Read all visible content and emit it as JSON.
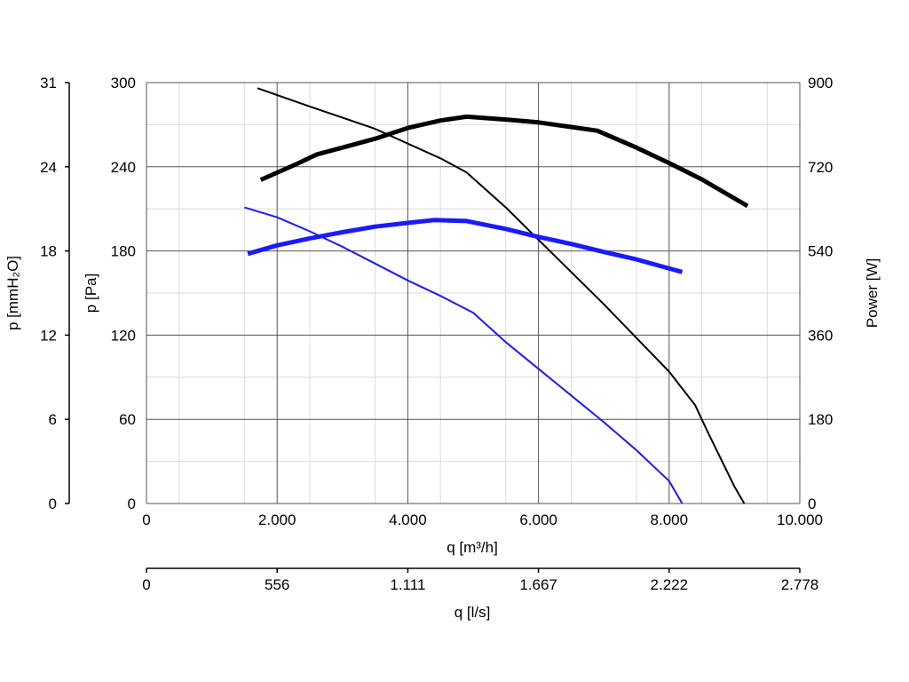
{
  "chart_data": {
    "type": "line",
    "grid": true,
    "legend": "none",
    "x_axis": {
      "label": "q [m³/h]",
      "range": [
        0,
        10000
      ],
      "ticks": [
        0,
        2000,
        4000,
        6000,
        8000,
        10000
      ],
      "tick_labels": [
        "0",
        "2.000",
        "4.000",
        "6.000",
        "8.000",
        "10.000"
      ]
    },
    "x_axis_secondary": {
      "label": "q [l/s]",
      "range": [
        0,
        2778
      ],
      "ticks": [
        0,
        556,
        1111,
        1667,
        2222,
        2778
      ],
      "tick_labels": [
        "0",
        "556",
        "1.111",
        "1.667",
        "2.222",
        "2.778"
      ]
    },
    "y_axis": {
      "label": "p [Pa]",
      "range": [
        0,
        300
      ],
      "ticks": [
        0,
        60,
        120,
        180,
        240,
        300
      ],
      "tick_labels": [
        "0",
        "60",
        "120",
        "180",
        "240",
        "300"
      ]
    },
    "y_axis_outer": {
      "label": "p [mmH₂O]",
      "range": [
        0,
        31
      ],
      "ticks": [
        0,
        6,
        12,
        18,
        24,
        31
      ],
      "tick_labels": [
        "0",
        "6",
        "12",
        "18",
        "24",
        "31"
      ]
    },
    "y_axis_right": {
      "label": "Power [W]",
      "range": [
        0,
        900
      ],
      "ticks": [
        0,
        180,
        360,
        540,
        720,
        900
      ],
      "tick_labels": [
        "0",
        "180",
        "360",
        "540",
        "720",
        "900"
      ]
    },
    "series": [
      {
        "axis": "pressure",
        "color": "#000000",
        "width": 2,
        "points": [
          [
            1700,
            296
          ],
          [
            2500,
            283
          ],
          [
            3500,
            267
          ],
          [
            4500,
            246
          ],
          [
            4900,
            236
          ],
          [
            5500,
            211
          ],
          [
            6000,
            188
          ],
          [
            7000,
            142
          ],
          [
            7500,
            118
          ],
          [
            8000,
            94
          ],
          [
            8400,
            70
          ],
          [
            8600,
            50
          ],
          [
            9000,
            12
          ],
          [
            9150,
            0
          ]
        ]
      },
      {
        "axis": "power",
        "color": "#000000",
        "width": 5,
        "points": [
          [
            1750,
            692
          ],
          [
            2300,
            726
          ],
          [
            2600,
            746
          ],
          [
            3000,
            761
          ],
          [
            3500,
            780
          ],
          [
            4000,
            803
          ],
          [
            4500,
            819
          ],
          [
            4900,
            827
          ],
          [
            5500,
            821
          ],
          [
            6000,
            815
          ],
          [
            6900,
            797
          ],
          [
            7500,
            761
          ],
          [
            8000,
            728
          ],
          [
            8500,
            693
          ],
          [
            9200,
            636
          ]
        ]
      },
      {
        "axis": "pressure",
        "color": "#1a1aff",
        "width": 2,
        "points": [
          [
            1500,
            211
          ],
          [
            2000,
            204
          ],
          [
            2500,
            194
          ],
          [
            3000,
            183
          ],
          [
            3500,
            171
          ],
          [
            4000,
            159
          ],
          [
            4500,
            148
          ],
          [
            5000,
            136
          ],
          [
            5500,
            115
          ],
          [
            6000,
            96
          ],
          [
            6500,
            77
          ],
          [
            7000,
            58
          ],
          [
            7500,
            38
          ],
          [
            8000,
            16
          ],
          [
            8200,
            0
          ]
        ]
      },
      {
        "axis": "power",
        "color": "#1a1aff",
        "width": 5,
        "points": [
          [
            1550,
            534
          ],
          [
            2000,
            552
          ],
          [
            2500,
            567
          ],
          [
            3000,
            580
          ],
          [
            3500,
            592
          ],
          [
            4000,
            600
          ],
          [
            4400,
            606
          ],
          [
            4900,
            604
          ],
          [
            5500,
            587
          ],
          [
            6000,
            570
          ],
          [
            6500,
            555
          ],
          [
            7000,
            538
          ],
          [
            7500,
            522
          ],
          [
            8200,
            495
          ]
        ]
      }
    ]
  }
}
